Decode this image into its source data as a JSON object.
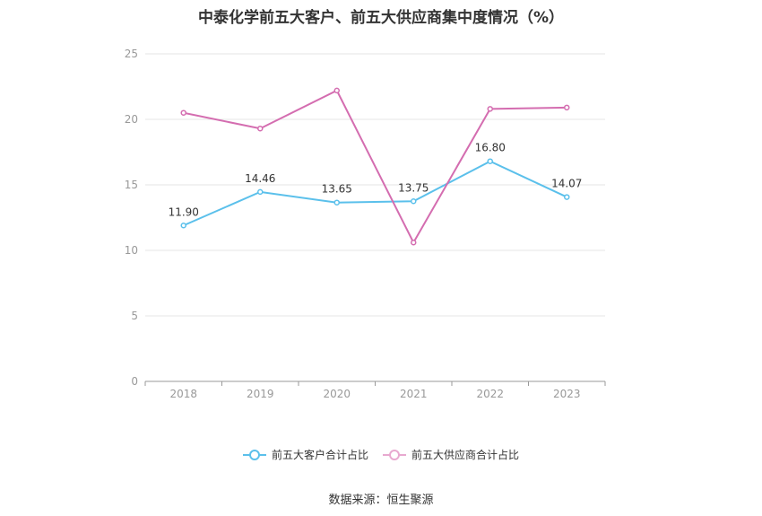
{
  "chart_data": {
    "type": "line",
    "title": "中泰化学前五大客户、前五大供应商集中度情况（%）",
    "categories": [
      "2018",
      "2019",
      "2020",
      "2021",
      "2022",
      "2023"
    ],
    "ylim": [
      0,
      25
    ],
    "yticks": [
      "0",
      "5",
      "10",
      "15",
      "20",
      "25"
    ],
    "grid": true,
    "legend_position": "bottom",
    "series": [
      {
        "name": "前五大客户合计占比",
        "color": "#5bc0eb",
        "values": [
          11.9,
          14.46,
          13.65,
          13.75,
          16.8,
          14.07
        ],
        "labels": [
          "11.90",
          "14.46",
          "13.65",
          "13.75",
          "16.80",
          "14.07"
        ]
      },
      {
        "name": "前五大供应商合计占比",
        "color": "#d46db0",
        "values": [
          20.5,
          19.3,
          22.2,
          10.6,
          20.8,
          20.9
        ],
        "labels": null
      }
    ]
  },
  "footer": {
    "source": "数据来源：恒生聚源"
  }
}
